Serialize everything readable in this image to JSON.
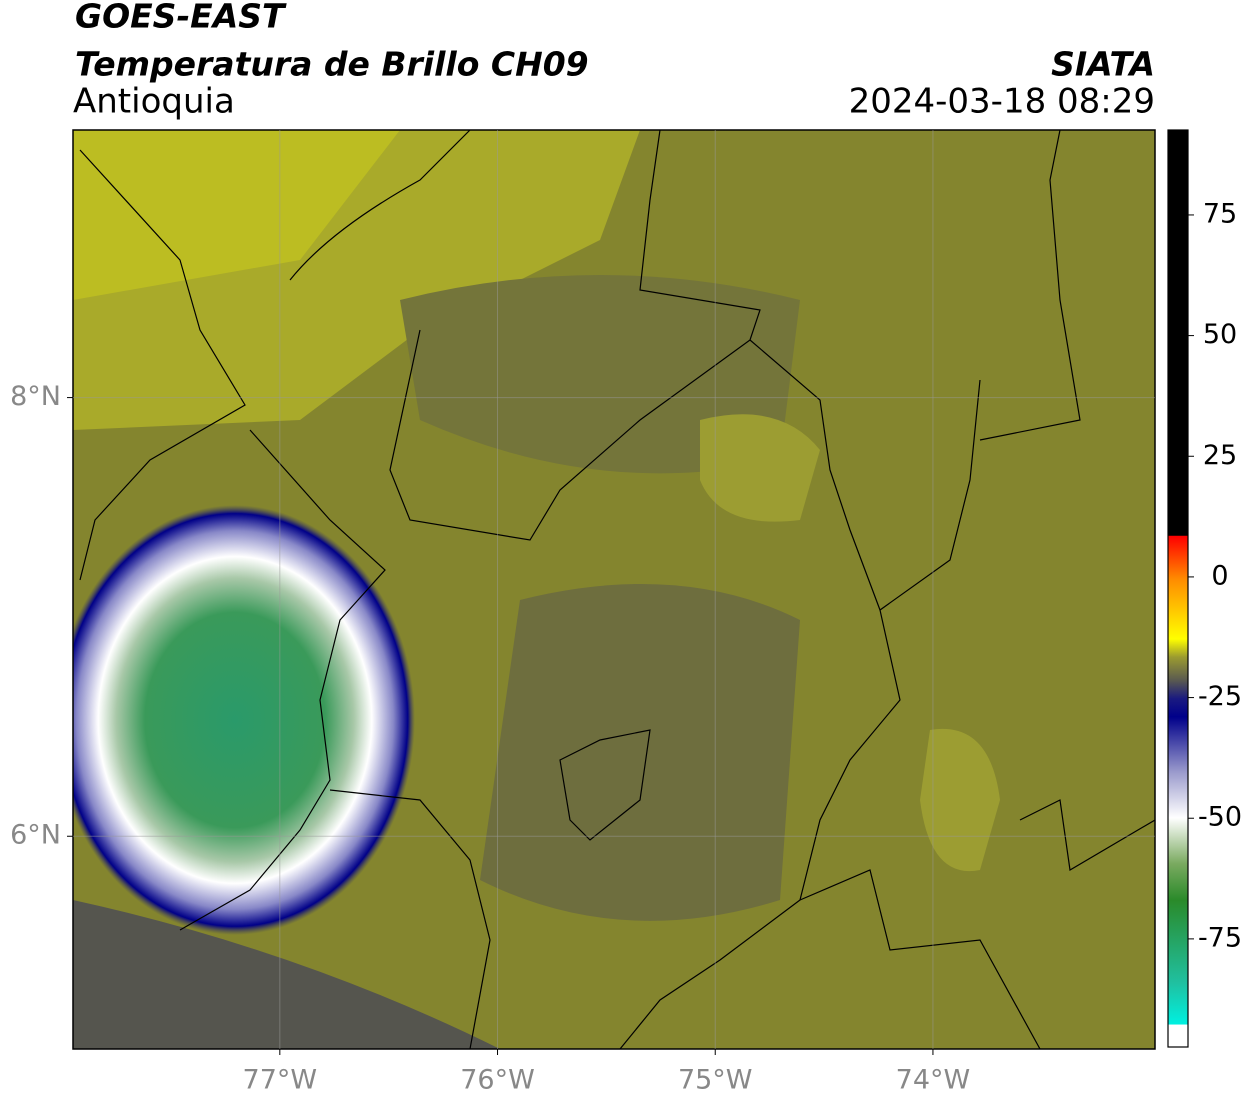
{
  "header": {
    "title": "GOES-EAST",
    "subtitle": "Temperatura de Brillo CH09",
    "region": "Antioquia",
    "source": "SIATA",
    "datetime": "2024-03-18 08:29"
  },
  "map": {
    "xlim": [
      -77.95,
      -72.98
    ],
    "ylim": [
      5.03,
      9.22
    ],
    "xticks": [
      {
        "value": -77,
        "label": "77°W"
      },
      {
        "value": -76,
        "label": "76°W"
      },
      {
        "value": -75,
        "label": "75°W"
      },
      {
        "value": -74,
        "label": "74°W"
      }
    ],
    "yticks": [
      {
        "value": 6,
        "label": "6°N"
      },
      {
        "value": 8,
        "label": "8°N"
      }
    ],
    "grid": true
  },
  "colorbar": {
    "lim": [
      -97.4,
      92.6
    ],
    "ticks": [
      75,
      50,
      25,
      0,
      -25,
      -50,
      -75
    ]
  }
}
